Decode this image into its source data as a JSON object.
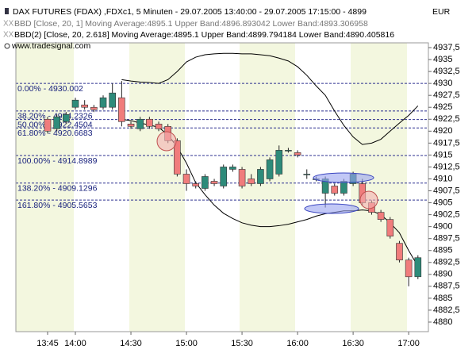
{
  "chart_data": {
    "type": "candlestick",
    "title": "DAX FUTURES (FDAX) ,FDXc1, 5 Minuten - 29.07.2005 13:40:00 - 29.07.2005 17:15:00 - 4899",
    "currency": "EUR",
    "subtitles": [
      "BBD [Close, 20, 1] Moving Average:4895.1 Upper Band:4896.893042 Lower Band:4893.306958",
      "BBD(2) [Close, 20, 2.618] Moving Average:4895.1 Upper Band:4899.794184 Lower Band:4890.405816"
    ],
    "source": "www.tradesignal.com",
    "x": [
      "13:45",
      "13:50",
      "13:55",
      "14:00",
      "14:05",
      "14:10",
      "14:15",
      "14:20",
      "14:25",
      "14:30",
      "14:35",
      "14:40",
      "14:45",
      "14:50",
      "14:55",
      "15:00",
      "15:05",
      "15:10",
      "15:15",
      "15:20",
      "15:25",
      "15:30",
      "15:35",
      "15:40",
      "15:45",
      "15:50",
      "15:55",
      "16:00",
      "16:05",
      "16:10",
      "16:15",
      "16:20",
      "16:25",
      "16:30",
      "16:35",
      "16:40",
      "16:45",
      "16:50",
      "16:55",
      "17:00",
      "17:05"
    ],
    "open": [
      4922.5,
      4920.5,
      4922,
      4925,
      4925.5,
      4925,
      4925,
      4925,
      4927,
      4921.5,
      4920.5,
      4922.5,
      4921.5,
      4921,
      4918,
      4911,
      4909,
      4908,
      4909.5,
      4908.5,
      4912,
      4912,
      4910,
      4909,
      4910,
      4911,
      4916,
      4915.5,
      4911,
      4910,
      4907,
      4908.5,
      4907,
      4909,
      4909,
      4905,
      4903,
      4901.5,
      4896.5,
      4893,
      4889.5
    ],
    "high": [
      4923,
      4923.5,
      4924,
      4927,
      4926.5,
      4925.5,
      4927.5,
      4930,
      4930.5,
      4922,
      4923,
      4923,
      4922,
      4921.5,
      4918.5,
      4912,
      4909.5,
      4911,
      4910,
      4913,
      4913,
      4912.5,
      4911,
      4912.5,
      4914.5,
      4917,
      4916.5,
      4916,
      4912,
      4910.5,
      4910.5,
      4909,
      4910,
      4911.5,
      4910,
      4905.5,
      4903.5,
      4902,
      4897,
      4893.5,
      4894
    ],
    "low": [
      4919.5,
      4920,
      4921.5,
      4924.5,
      4924.5,
      4924,
      4924.5,
      4924.5,
      4921,
      4920.5,
      4920,
      4920.5,
      4920,
      4917.5,
      4910.5,
      4907.5,
      4908,
      4907.5,
      4908.5,
      4908,
      4911.5,
      4908,
      4908.5,
      4908.5,
      4909.5,
      4910.5,
      4915.5,
      4914.5,
      4910,
      4909.5,
      4904,
      4906.5,
      4906.5,
      4908.5,
      4904.5,
      4902.5,
      4901,
      4897.5,
      4892.5,
      4887.5,
      4889
    ],
    "close": [
      4920,
      4923,
      4923.5,
      4926.5,
      4925,
      4924.5,
      4927,
      4928,
      4922,
      4921,
      4922.5,
      4921,
      4920.5,
      4918,
      4911,
      4909,
      4908.5,
      4910.5,
      4909,
      4912.5,
      4912.5,
      4908.5,
      4909,
      4912,
      4914,
      4916,
      4916,
      4915,
      4911,
      4910,
      4910,
      4907,
      4909.5,
      4911,
      4905,
      4903,
      4901.5,
      4898,
      4893,
      4889.5,
      4893.5
    ],
    "up_color": "#2e8b7a",
    "down_color": "#f07c7c",
    "series": [
      {
        "name": "Upper Band",
        "color": "#000000",
        "values": [
          null,
          null,
          null,
          null,
          null,
          null,
          null,
          null,
          4930.8,
          4930.5,
          4930.3,
          4930.2,
          4930,
          4930.8,
          4932.5,
          4934.5,
          4935.5,
          4936,
          4936.2,
          4936.3,
          4936.3,
          4936.2,
          4936.2,
          4936,
          4935.8,
          4935.3,
          4934.7,
          4933.5,
          4931.7,
          4929.5,
          4927.5,
          4924.2,
          4921.2,
          4918.8,
          4917.2,
          4917.5,
          4918.3,
          4920,
          4921.7,
          4923.3,
          4925.3
        ]
      },
      {
        "name": "Lower Band",
        "color": "#000000",
        "values": [
          null,
          null,
          null,
          null,
          null,
          null,
          null,
          null,
          4922.5,
          4922.2,
          4921.7,
          4921.3,
          4920.8,
          4919.2,
          4916.7,
          4913.3,
          4909.2,
          4906.7,
          4904.5,
          4902.8,
          4901.7,
          4900.8,
          4900.3,
          4900,
          4900,
          4900.2,
          4900.5,
          4901,
          4901.5,
          4902.2,
          4902.7,
          4903,
          4903.3,
          4903.3,
          4903.5,
          4903.3,
          4902.5,
          4900.8,
          4898.7,
          4895,
          4891.7
        ]
      }
    ],
    "fib_levels": [
      {
        "value": 4930.002,
        "label": "0.00% - 4930.002"
      },
      {
        "value": 4924.2326,
        "label": "38.20% - 4924.2326"
      },
      {
        "value": 4922.4504,
        "label": "50.00% - 4922.4504"
      },
      {
        "value": 4920.6683,
        "label": "61.80% - 4920.6683"
      },
      {
        "value": 4914.8989,
        "label": "100.00% - 4914.8989"
      },
      {
        "value": 4909.1296,
        "label": "138.20% - 4909.1296"
      },
      {
        "value": 4905.5653,
        "label": "161.80% - 4905.5653"
      }
    ],
    "ylim": [
      4878,
      4938.5
    ],
    "yticks": [
      4880,
      {
        "value": 4882.5,
        "label": "4882,5"
      },
      4885,
      {
        "value": 4887.5,
        "label": "4887,5"
      },
      4890,
      {
        "value": 4892.5,
        "label": "4892,5"
      },
      4895,
      {
        "value": 4897.5,
        "label": "4897,5"
      },
      4900,
      {
        "value": 4902.5,
        "label": "4902,5"
      },
      4905,
      {
        "value": 4907.5,
        "label": "4907,5"
      },
      4910,
      {
        "value": 4912.5,
        "label": "4912,5"
      },
      4915,
      {
        "value": 4917.5,
        "label": "4917,5"
      },
      4920,
      {
        "value": 4922.5,
        "label": "4922,5"
      },
      4925,
      {
        "value": 4927.5,
        "label": "4927,5"
      },
      4930,
      {
        "value": 4932.5,
        "label": "4932,5"
      },
      4935,
      {
        "value": 4937.5,
        "label": "4937,5"
      }
    ],
    "xticks": [
      "13:45",
      "14:00",
      "14:30",
      "15:00",
      "15:30",
      "16:00",
      "16:30",
      "17:00"
    ]
  }
}
